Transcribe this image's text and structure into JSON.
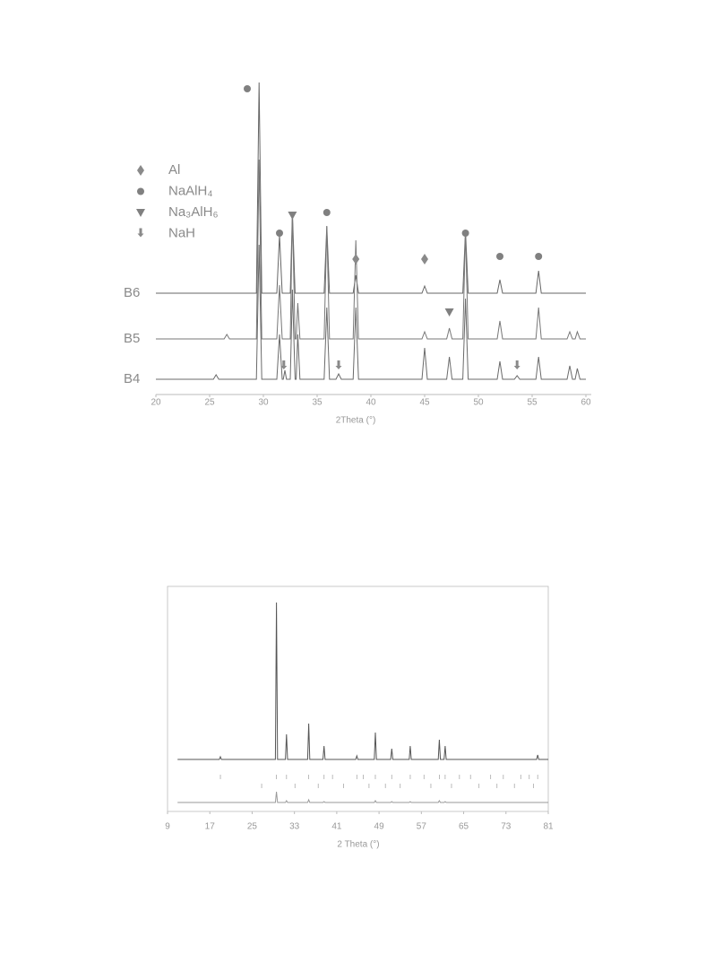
{
  "chart_data": [
    {
      "type": "line",
      "x": [
        20,
        25.35,
        25.6,
        25.85,
        26.35,
        26.6,
        26.85,
        29.35,
        29.6,
        29.85,
        31.25,
        31.5,
        31.75,
        31.85,
        32.0,
        32.15,
        32.5,
        32.7,
        32.95,
        33.05,
        33.2,
        33.4,
        35.65,
        35.9,
        36.15,
        36.75,
        37.0,
        37.25,
        38.35,
        38.6,
        38.85,
        44.75,
        45.0,
        45.25,
        47.05,
        47.3,
        47.55,
        48.55,
        48.8,
        49.05,
        51.75,
        52.0,
        52.25,
        53.35,
        53.6,
        53.85,
        55.35,
        55.6,
        55.85,
        58.25,
        58.5,
        58.75,
        59.0,
        59.2,
        59.45,
        60
      ],
      "series": [
        {
          "name": "B6",
          "color": "#666666",
          "values": [
            0,
            0,
            0,
            0,
            0,
            0,
            0,
            0,
            235,
            0,
            0,
            65,
            0,
            0,
            0,
            0,
            0,
            90,
            0,
            0,
            0,
            0,
            0,
            75,
            0,
            0,
            0,
            0,
            0,
            20,
            0,
            0,
            8,
            0,
            0,
            0,
            0,
            0,
            70,
            0,
            0,
            15,
            0,
            0,
            0,
            0,
            0,
            25,
            0,
            0,
            0,
            0,
            0,
            0,
            0,
            0
          ]
        },
        {
          "name": "B5",
          "color": "#777777",
          "values": [
            0,
            0,
            0,
            0,
            0,
            5,
            0,
            0,
            200,
            0,
            0,
            60,
            0,
            0,
            0,
            0,
            0,
            140,
            0,
            0,
            40,
            0,
            0,
            125,
            0,
            0,
            0,
            0,
            0,
            110,
            0,
            0,
            8,
            0,
            0,
            12,
            0,
            0,
            120,
            0,
            0,
            20,
            0,
            0,
            0,
            0,
            0,
            35,
            0,
            0,
            8,
            0,
            0,
            8,
            0,
            0
          ]
        },
        {
          "name": "B4",
          "color": "#6a6a6a",
          "values": [
            0,
            0,
            5,
            0,
            0,
            0,
            0,
            0,
            150,
            0,
            0,
            50,
            0,
            0,
            10,
            0,
            0,
            100,
            0,
            0,
            50,
            0,
            0,
            80,
            0,
            0,
            6,
            0,
            0,
            80,
            0,
            0,
            35,
            0,
            0,
            25,
            0,
            0,
            90,
            0,
            0,
            20,
            0,
            0,
            4,
            0,
            0,
            25,
            0,
            0,
            15,
            0,
            0,
            12,
            0,
            0
          ]
        }
      ],
      "legend": [
        {
          "name": "Al",
          "symbol": "diamond",
          "color": "#8a8a8a",
          "x": [
            38.6,
            45.0
          ],
          "y": [
            38,
            38
          ]
        },
        {
          "name": "NaAlH₄",
          "symbol": "circle",
          "color": "#808080",
          "x": [
            28.5,
            31.5,
            35.9,
            48.8,
            52.0,
            55.6
          ],
          "y": [
            228,
            67,
            90,
            67,
            41,
            41
          ]
        },
        {
          "name": "Na₃AlH₆",
          "symbol": "triangle",
          "color": "#808080",
          "x": [
            32.7,
            47.3
          ],
          "y": [
            87,
            -21
          ]
        },
        {
          "name": "NaH",
          "symbol": "arrow",
          "color": "#8a8a8a",
          "x": [
            31.9,
            37.0,
            53.6
          ],
          "y": [
            -81,
            -81,
            -81
          ]
        }
      ],
      "xlim": [
        20,
        60
      ],
      "xticks": [
        20,
        25,
        30,
        35,
        40,
        45,
        50,
        55,
        60
      ],
      "xlabel": "2Theta (°)"
    },
    {
      "type": "line",
      "x": [
        10.9,
        18.8,
        19,
        19.2,
        29.4,
        29.6,
        29.8,
        31.3,
        31.5,
        31.7,
        35.5,
        35.7,
        35.9,
        38.4,
        38.6,
        38.8,
        44.6,
        44.8,
        45,
        48.1,
        48.3,
        48.5,
        51.2,
        51.4,
        51.6,
        54.7,
        54.9,
        55.1,
        60.2,
        60.4,
        60.6,
        61.3,
        61.5,
        61.7,
        78.8,
        79,
        79.2,
        81
      ],
      "series": [
        {
          "color": "#555555",
          "values": [
            0,
            0,
            3,
            0,
            0,
            175,
            0,
            0,
            28,
            0,
            0,
            40,
            0,
            0,
            15,
            0,
            0,
            4,
            0,
            0,
            30,
            0,
            0,
            12,
            0,
            0,
            15,
            0,
            0,
            22,
            0,
            0,
            15,
            0,
            0,
            5,
            0,
            0
          ]
        },
        {
          "color": "#999999",
          "values": [
            0,
            0,
            0,
            0,
            0,
            12,
            0,
            0,
            2,
            0,
            0,
            3,
            0,
            0,
            1,
            0,
            0,
            0,
            0,
            0,
            2,
            0,
            0,
            1,
            0,
            0,
            1,
            0,
            0,
            2,
            0,
            0,
            1,
            0,
            0,
            0,
            0,
            0
          ]
        }
      ],
      "reflections": [
        [
          19.0,
          29.6,
          31.5,
          35.7,
          38.6,
          40.2,
          44.8,
          46.0,
          48.3,
          51.4,
          54.9,
          57.5,
          60.4,
          61.5,
          64.2,
          66.3,
          70.1,
          72.5,
          75.8,
          77.4,
          79.0
        ],
        [
          26.8,
          33.1,
          37.5,
          42.3,
          47.1,
          50.2,
          53.0,
          58.8,
          62.7,
          67.9,
          71.3,
          74.6,
          78.2
        ]
      ],
      "xlim": [
        9,
        81
      ],
      "xticks": [
        9,
        17,
        25,
        33,
        41,
        49,
        57,
        65,
        73,
        81
      ],
      "xlabel": "2 Theta (°)"
    }
  ]
}
